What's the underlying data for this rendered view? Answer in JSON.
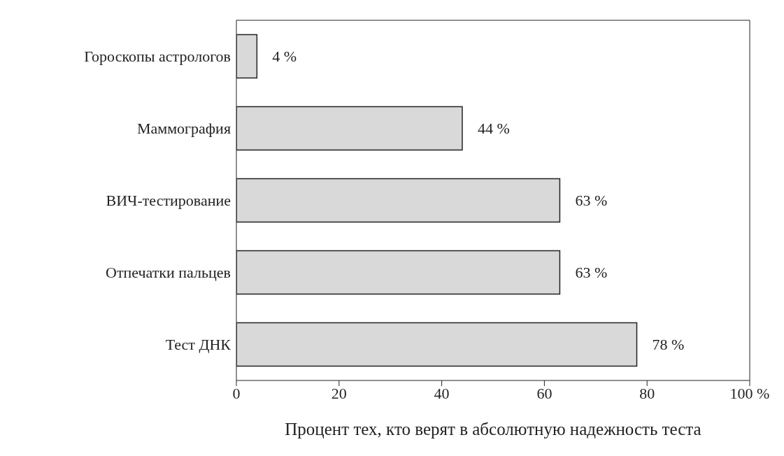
{
  "chart_data": {
    "type": "bar",
    "orientation": "horizontal",
    "xlabel": "Процент тех, кто верят в абсолютную надежность теста",
    "categories": [
      "Гороскопы астрологов",
      "Маммография",
      "ВИЧ-тестирование",
      "Отпечатки пальцев",
      "Тест ДНК"
    ],
    "values": [
      4,
      44,
      63,
      63,
      78
    ],
    "color": "#d9d9d9",
    "value_labels": [
      "4 %",
      "44 %",
      "63 %",
      "63 %",
      "78 %"
    ],
    "xlim": [
      0,
      100
    ],
    "xticks": [
      0,
      20,
      40,
      60,
      80,
      {
        "value": 100,
        "label": "100 %"
      }
    ],
    "grid": false
  }
}
